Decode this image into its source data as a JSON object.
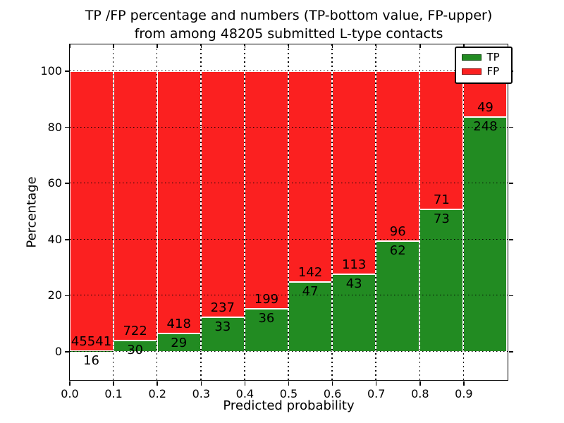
{
  "figure": {
    "title_line1": "TP /FP percentage and numbers (TP-bottom value, FP-upper)",
    "title_line2": "from among 48205 submitted L-type contacts"
  },
  "axes": {
    "xlabel": "Predicted probability",
    "ylabel": "Percentage",
    "xtick_labels": [
      "0.0",
      "0.1",
      "0.2",
      "0.3",
      "0.4",
      "0.5",
      "0.6",
      "0.7",
      "0.8",
      "0.9"
    ],
    "ytick_labels": [
      "0",
      "20",
      "40",
      "60",
      "80",
      "100"
    ],
    "ytick_values": [
      0,
      20,
      40,
      60,
      80,
      100
    ]
  },
  "legend": {
    "items": [
      {
        "label": "TP",
        "color": "#228b22"
      },
      {
        "label": "FP",
        "color": "#fb2020"
      }
    ]
  },
  "colors": {
    "tp": "#228b22",
    "fp": "#fb2020",
    "bar_edge": "#ffffff",
    "grid": "#000000"
  },
  "chart_data": {
    "type": "bar",
    "stacked": true,
    "percent_normalized": true,
    "title": "TP /FP percentage and numbers (TP-bottom value, FP-upper) from among 48205 submitted L-type contacts",
    "xlabel": "Predicted probability",
    "ylabel": "Percentage",
    "xlim": [
      0.0,
      1.0
    ],
    "ylim_ticks": [
      0,
      100
    ],
    "grid": "dotted",
    "legend_position": "upper right",
    "total_contacts": 48205,
    "categories": [
      "0.0-0.1",
      "0.1-0.2",
      "0.2-0.3",
      "0.3-0.4",
      "0.4-0.5",
      "0.5-0.6",
      "0.6-0.7",
      "0.7-0.8",
      "0.8-0.9",
      "0.9-1.0"
    ],
    "series": [
      {
        "name": "TP",
        "counts": [
          16,
          30,
          29,
          33,
          36,
          47,
          43,
          62,
          73,
          248
        ]
      },
      {
        "name": "FP",
        "counts": [
          45541,
          722,
          418,
          237,
          199,
          142,
          113,
          96,
          71,
          49
        ]
      }
    ],
    "tp_percent": [
      0.04,
      3.99,
      6.49,
      12.22,
      15.32,
      24.87,
      27.56,
      39.24,
      50.69,
      83.5
    ]
  }
}
